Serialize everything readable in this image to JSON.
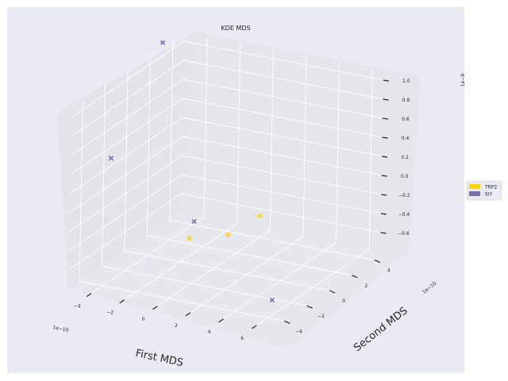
{
  "chart_data": {
    "type": "scatter",
    "projection": "3d",
    "title": "KDE MDS",
    "xlabel": "First MDS",
    "ylabel": "Second MDS",
    "zlabel": "",
    "x_offset_label": "1e−10",
    "y_offset_label": "1e−10",
    "z_offset_label": "1e−9",
    "x_ticks": [
      "−4",
      "−2",
      "0",
      "2",
      "4",
      "6"
    ],
    "y_ticks": [
      "−4",
      "−2",
      "0",
      "2",
      "4"
    ],
    "z_ticks": [
      "−0.6",
      "−0.4",
      "−0.2",
      "0.0",
      "0.2",
      "0.4",
      "0.6",
      "0.8",
      "1.0"
    ],
    "grid": true,
    "legend_position": "right",
    "series": [
      {
        "name": "TRP2",
        "color": "#ffd500",
        "marker": "x",
        "points": [
          {
            "x": -0.3,
            "y": -1.8,
            "z": -0.35
          },
          {
            "x": 1.5,
            "y": -1.0,
            "z": -0.32
          },
          {
            "x": 2.6,
            "y": 0.2,
            "z": -0.18
          }
        ]
      },
      {
        "name": "SIY",
        "color": "#7b6fb4",
        "marker": "x",
        "points": [
          {
            "x": -5.0,
            "y": 2.5,
            "z": 1.2
          },
          {
            "x": -4.3,
            "y": -3.0,
            "z": 0.45
          },
          {
            "x": -0.9,
            "y": -0.5,
            "z": -0.3
          },
          {
            "x": 5.3,
            "y": -2.6,
            "z": -0.75
          }
        ]
      }
    ]
  }
}
